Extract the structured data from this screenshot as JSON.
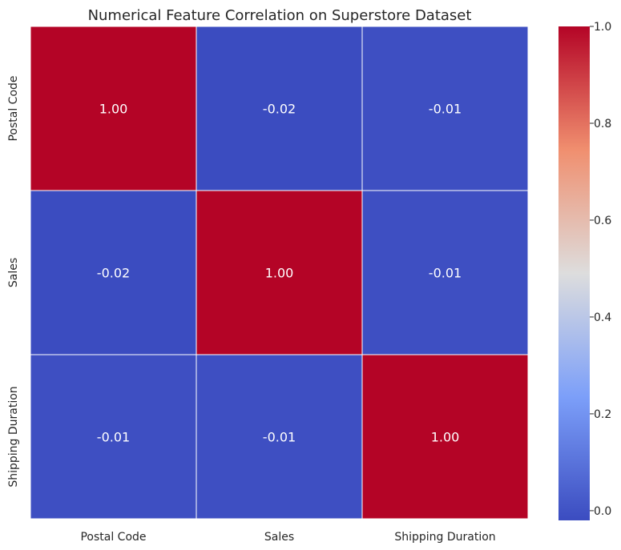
{
  "chart_data": {
    "type": "heatmap",
    "title": "Numerical Feature Correlation on Superstore Dataset",
    "x_categories": [
      "Postal Code",
      "Sales",
      "Shipping Duration"
    ],
    "y_categories": [
      "Postal Code",
      "Sales",
      "Shipping Duration"
    ],
    "values": [
      [
        1.0,
        -0.02,
        -0.01
      ],
      [
        -0.02,
        1.0,
        -0.01
      ],
      [
        -0.01,
        -0.01,
        1.0
      ]
    ],
    "value_labels": [
      [
        "1.00",
        "-0.02",
        "-0.01"
      ],
      [
        "-0.02",
        "1.00",
        "-0.01"
      ],
      [
        "-0.01",
        "-0.01",
        "1.00"
      ]
    ],
    "colorbar": {
      "colormap": "coolwarm",
      "range": [
        -0.02,
        1.0
      ],
      "ticks": [
        0.0,
        0.2,
        0.4,
        0.6,
        0.8,
        1.0
      ],
      "tick_labels": [
        "0.0",
        "0.2",
        "0.4",
        "0.6",
        "0.8",
        "1.0"
      ]
    },
    "grid": false,
    "legend": "colorbar-right"
  }
}
